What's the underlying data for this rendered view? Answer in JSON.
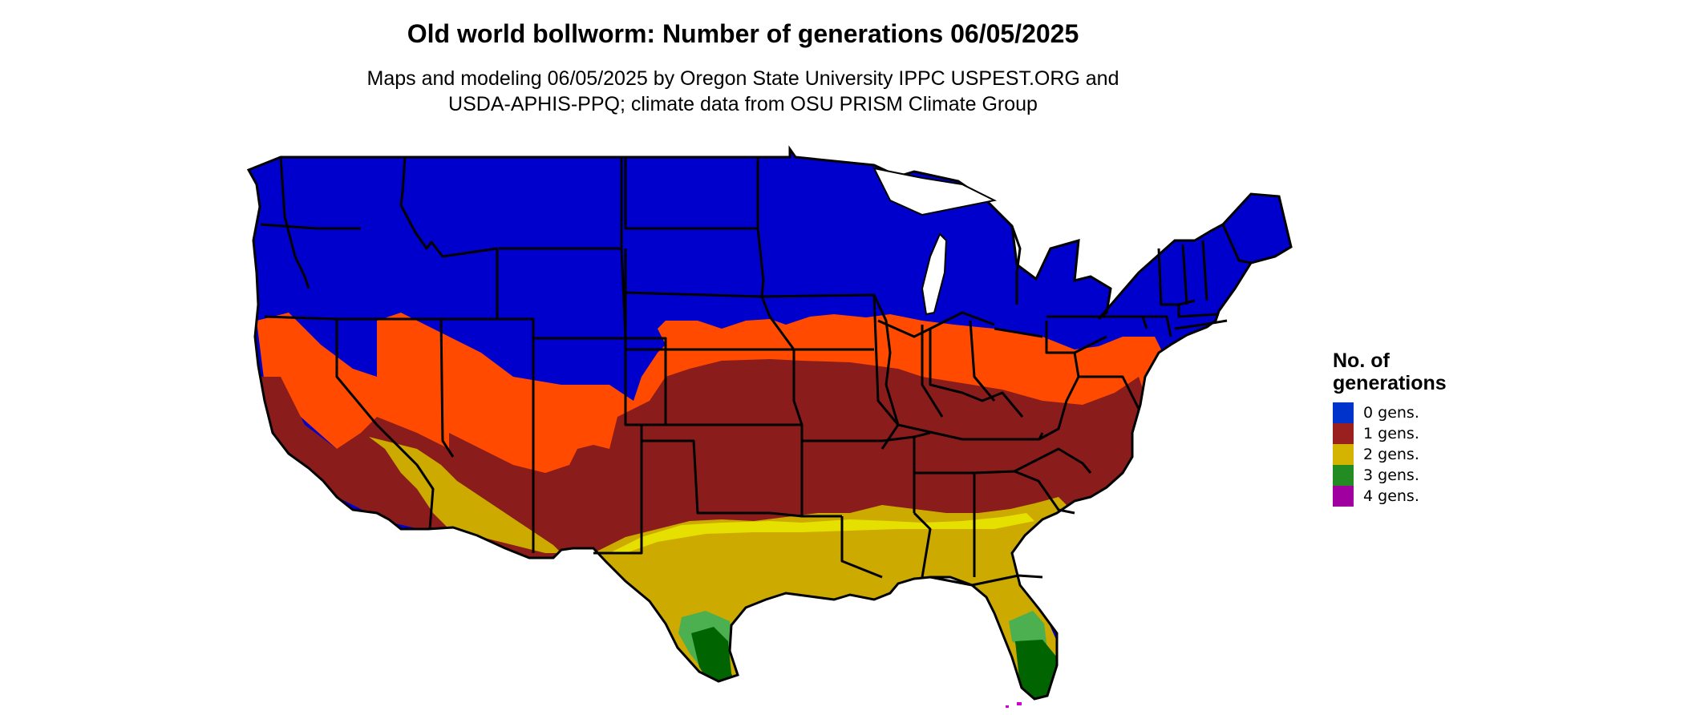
{
  "title": "Old world bollworm: Number of generations 06/05/2025",
  "subtitle": {
    "line1": "Maps and modeling 06/05/2025 by Oregon State University IPPC USPEST.ORG and",
    "line2": "USDA-APHIS-PPQ; climate data from OSU PRISM Climate Group"
  },
  "legend": {
    "title_line1": "No. of",
    "title_line2": "generations",
    "items": [
      {
        "label": "0 gens.",
        "color": "#0033cc"
      },
      {
        "label": "1 gens.",
        "color": "#9a2020"
      },
      {
        "label": "2 gens.",
        "color": "#d4b400"
      },
      {
        "label": "3 gens.",
        "color": "#228b22"
      },
      {
        "label": "4 gens.",
        "color": "#a000a0"
      }
    ]
  },
  "colors": {
    "zero": "#0000cc",
    "one_low": "#ff4a00",
    "one_mid": "#e03a10",
    "one": "#8b1c1c",
    "two": "#ccaa00",
    "two_high": "#e6e000",
    "three_low": "#4caf50",
    "three": "#006400",
    "four": "#cc00cc",
    "border": "#000000"
  }
}
